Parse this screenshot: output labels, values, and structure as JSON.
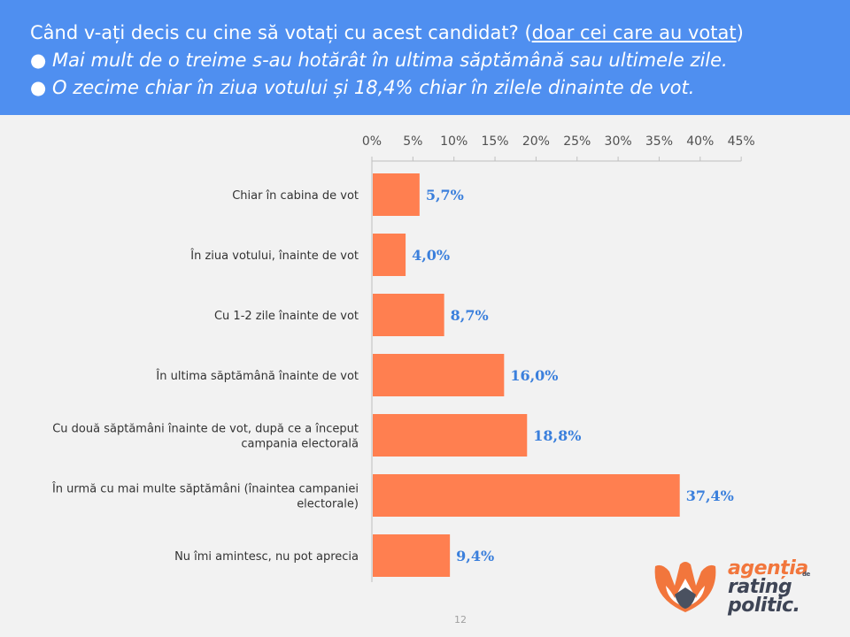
{
  "header": {
    "question": "Când v-ați decis cu cine să votați cu acest candidat?",
    "qualifier_open": " (",
    "qualifier": "doar cei care au votat",
    "qualifier_close": ")",
    "bullet1": "● Mai mult de o treime s-au hotărât în ultima săptămână sau ultimele zile.",
    "bullet2": "● O zecime chiar în ziua votului și 18,4% chiar în zilele dinainte de vot."
  },
  "chart_data": {
    "type": "bar",
    "orientation": "horizontal",
    "x_axis_position": "top",
    "xlim": [
      0,
      45
    ],
    "xticks": [
      0,
      5,
      10,
      15,
      20,
      25,
      30,
      35,
      40,
      45
    ],
    "xtick_labels": [
      "0%",
      "5%",
      "10%",
      "15%",
      "20%",
      "25%",
      "30%",
      "35%",
      "40%",
      "45%"
    ],
    "categories": [
      [
        "Chiar în cabina de vot"
      ],
      [
        "În ziua votului, înainte de vot"
      ],
      [
        "Cu 1-2 zile înainte de vot"
      ],
      [
        "În ultima săptămână înainte de vot"
      ],
      [
        "Cu două săptămâni înainte de vot, după ce a început",
        "campania electorală"
      ],
      [
        "În urmă cu mai multe săptămâni (înaintea campaniei",
        "electorale)"
      ],
      [
        "Nu îmi amintesc, nu pot aprecia"
      ]
    ],
    "values": [
      5.7,
      4.0,
      8.7,
      16.0,
      18.8,
      37.4,
      9.4
    ],
    "value_labels": [
      "5,7%",
      "4,0%",
      "8,7%",
      "16,0%",
      "18,8%",
      "37,4%",
      "9,4%"
    ],
    "bar_color": "#ff7f50",
    "label_color": "#3a7fdc",
    "grid": false
  },
  "footer": {
    "page_number": "12"
  },
  "logo": {
    "line1": "agenția",
    "de": "de",
    "line2": "rating",
    "line3": "politic."
  }
}
